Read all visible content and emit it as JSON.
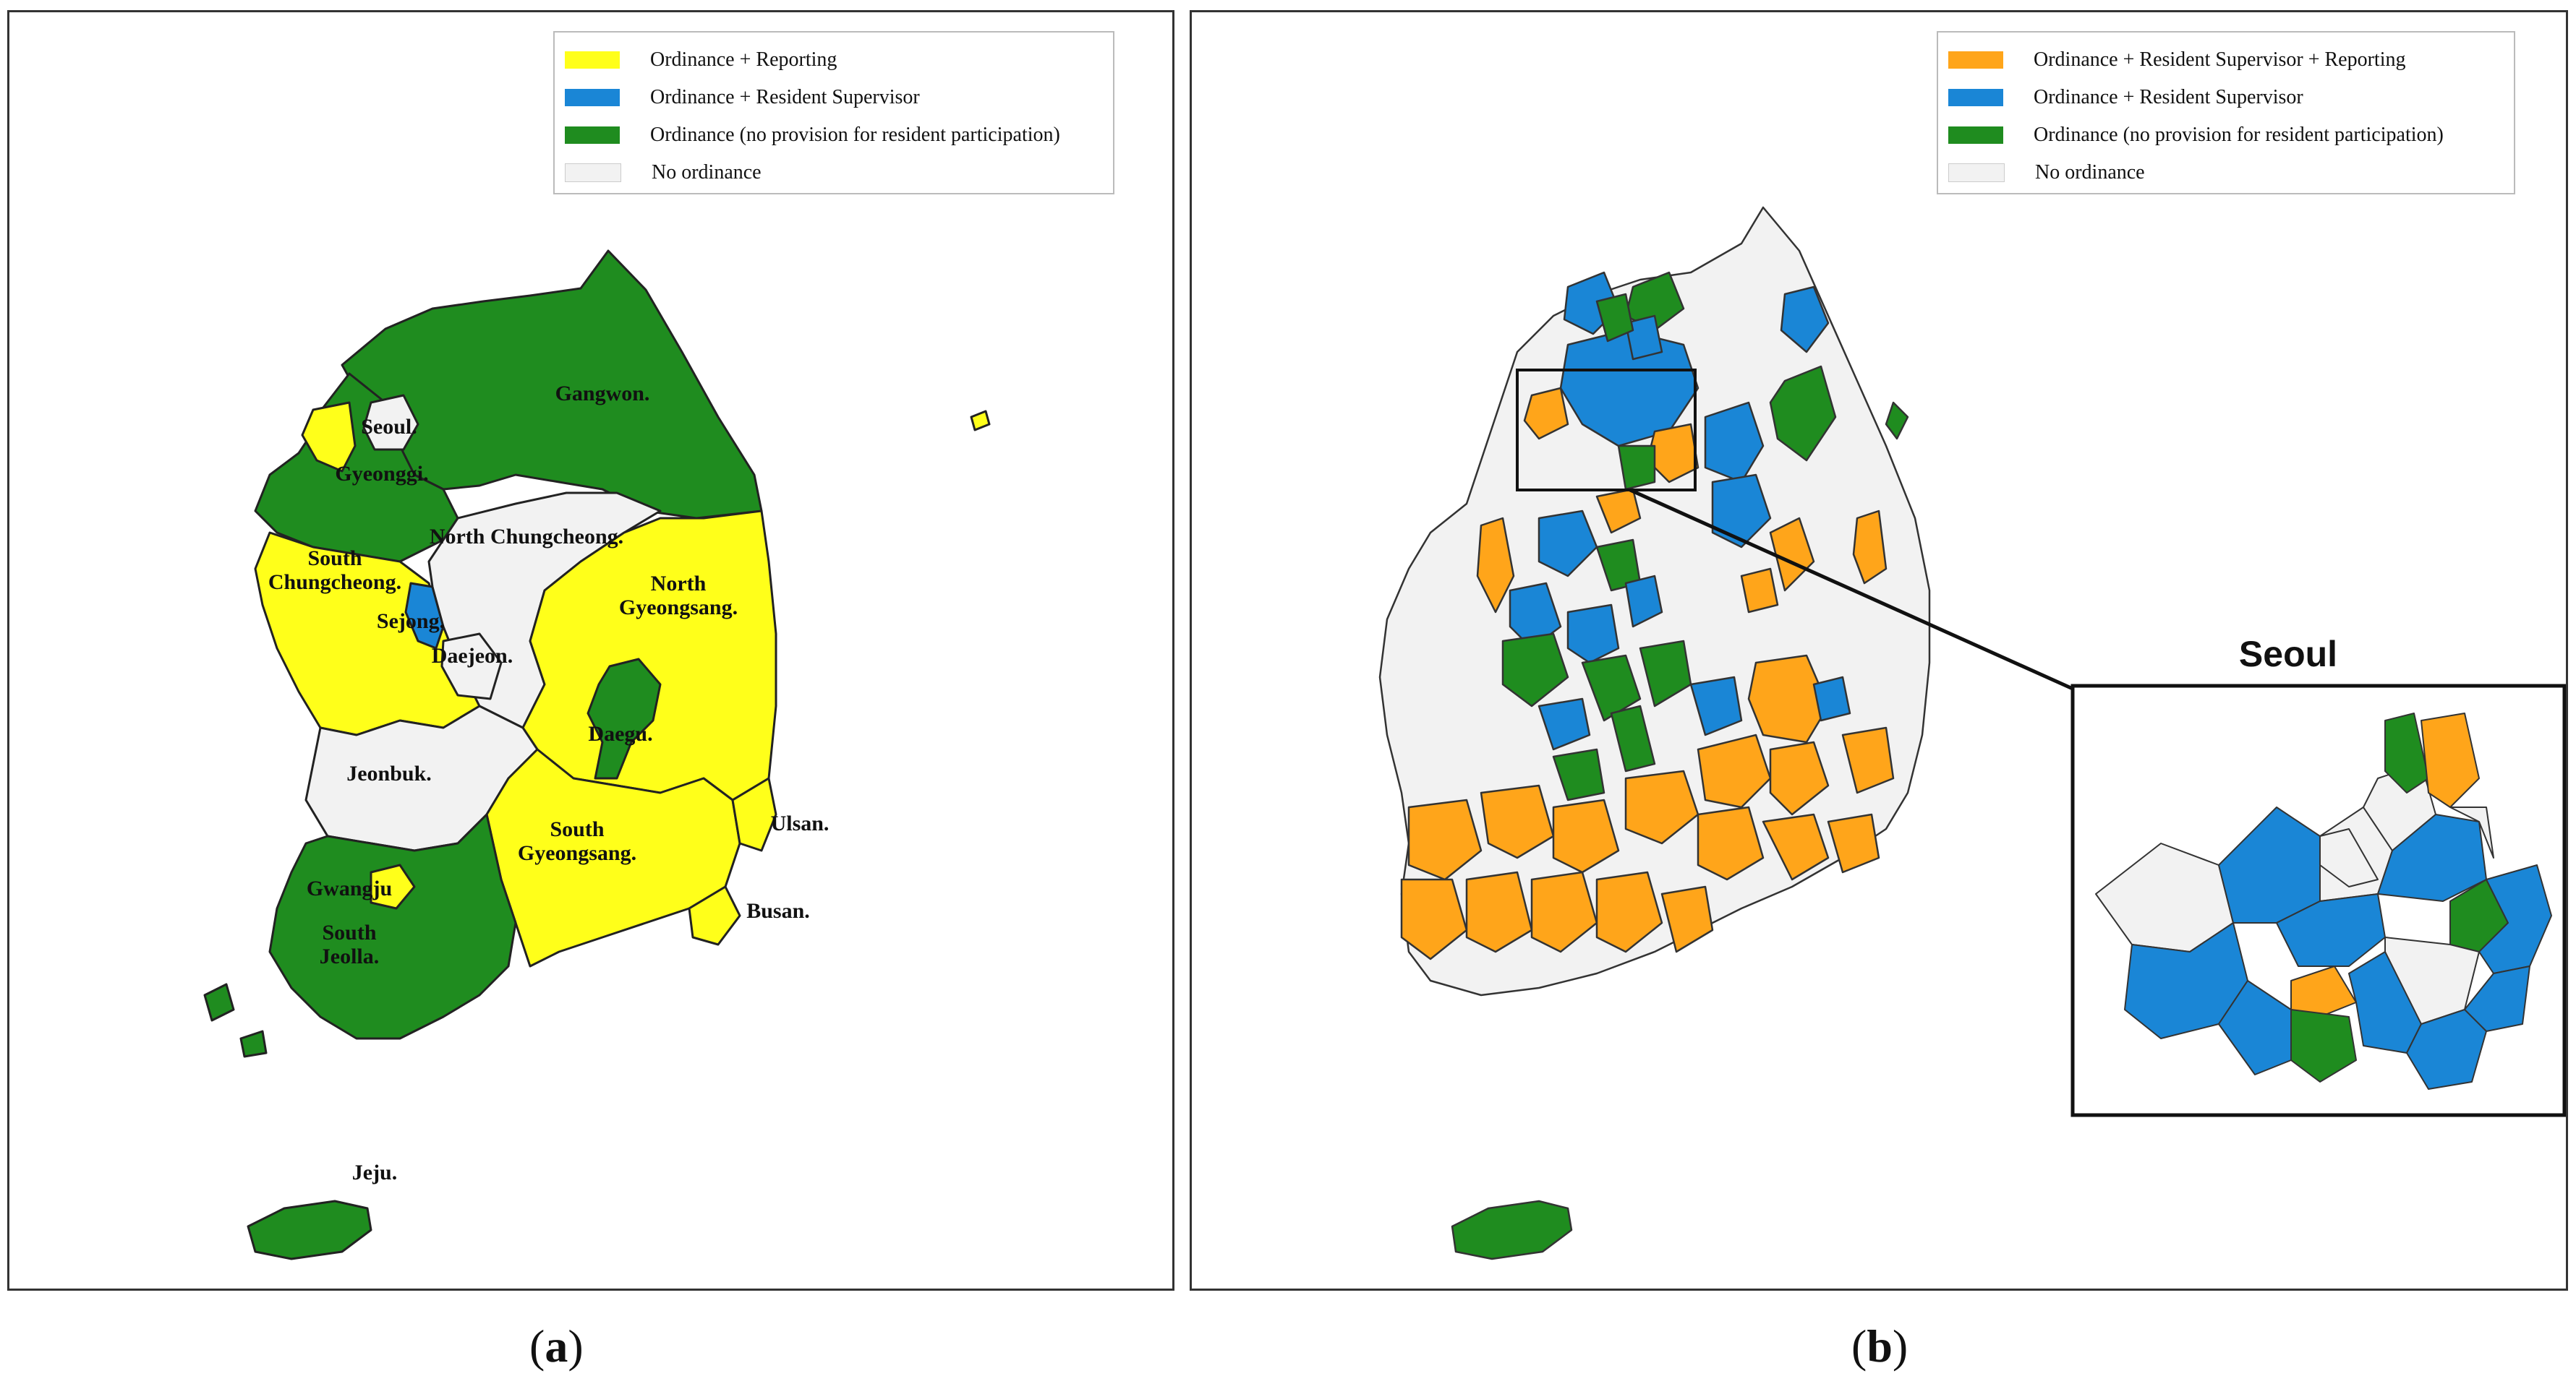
{
  "colors": {
    "reporting": "#ffff1a",
    "resident_supervisor": "#1a86d6",
    "no_provision": "#1f8c1f",
    "no_ordinance": "#f2f2f2",
    "supervisor_reporting": "#ffa51a"
  },
  "panel_a": {
    "legend": [
      {
        "label": "Ordinance + Reporting",
        "color": "#ffff1a"
      },
      {
        "label": "Ordinance + Resident Supervisor",
        "color": "#1a86d6"
      },
      {
        "label": "Ordinance (no provision for resident participation)",
        "color": "#1f8c1f"
      },
      {
        "label": "No ordinance",
        "color": "#f2f2f2"
      }
    ],
    "regions": {
      "seoul": "Seoul.",
      "gyeonggi": "Gyeonggi.",
      "gangwon": "Gangwon.",
      "north_chungcheong": "North Chungcheong.",
      "south_chungcheong_1": "South",
      "south_chungcheong_2": "Chungcheong.",
      "sejong": "Sejong.",
      "daejeon": "Daejeon.",
      "north_gyeongsang_1": "North",
      "north_gyeongsang_2": "Gyeongsang.",
      "daegu": "Daegu.",
      "jeonbuk": "Jeonbuk.",
      "ulsan": "Ulsan.",
      "south_gyeongsang_1": "South",
      "south_gyeongsang_2": "Gyeongsang.",
      "busan": "Busan.",
      "gwangju": "Gwangju",
      "south_jeolla_1": "South",
      "south_jeolla_2": "Jeolla.",
      "jeju": "Jeju."
    },
    "caption_letter": "a"
  },
  "panel_b": {
    "legend": [
      {
        "label": "Ordinance + Resident Supervisor + Reporting",
        "color": "#ffa51a"
      },
      {
        "label": "Ordinance + Resident Supervisor",
        "color": "#1a86d6"
      },
      {
        "label": "Ordinance (no provision for resident participation)",
        "color": "#1f8c1f"
      },
      {
        "label": "No ordinance",
        "color": "#f2f2f2"
      }
    ],
    "inset_title": "Seoul",
    "caption_letter": "b"
  }
}
